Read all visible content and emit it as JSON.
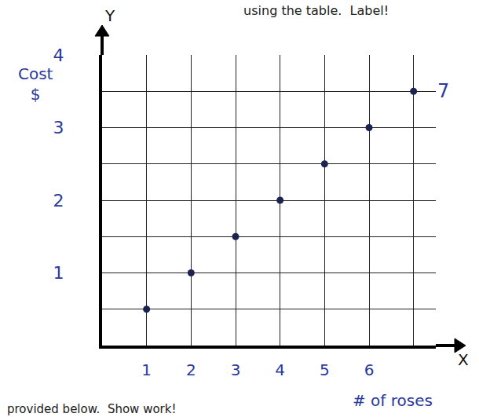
{
  "chart_data": {
    "type": "scatter",
    "title": "using the table.  Label!",
    "subtitle": "provided below.  Show work!",
    "xlabel": "# of roses",
    "ylabel": "Cost $",
    "x": [
      1,
      2,
      3,
      4,
      5,
      6,
      7
    ],
    "values": [
      0.5,
      1,
      1.5,
      2,
      2.5,
      3,
      3.5
    ],
    "color": "#1b2350",
    "marker": "circle",
    "xlim": [
      0,
      7.5
    ],
    "xticks": [
      1,
      2,
      3,
      4,
      5,
      6
    ],
    "ylim": [
      0,
      4
    ],
    "yticks": [
      1,
      2,
      3,
      4
    ],
    "grid": true,
    "annotations": [
      {
        "text": "7",
        "x": 7,
        "y": 3.5
      },
      {
        "text": "X"
      },
      {
        "text": "Y"
      }
    ]
  }
}
